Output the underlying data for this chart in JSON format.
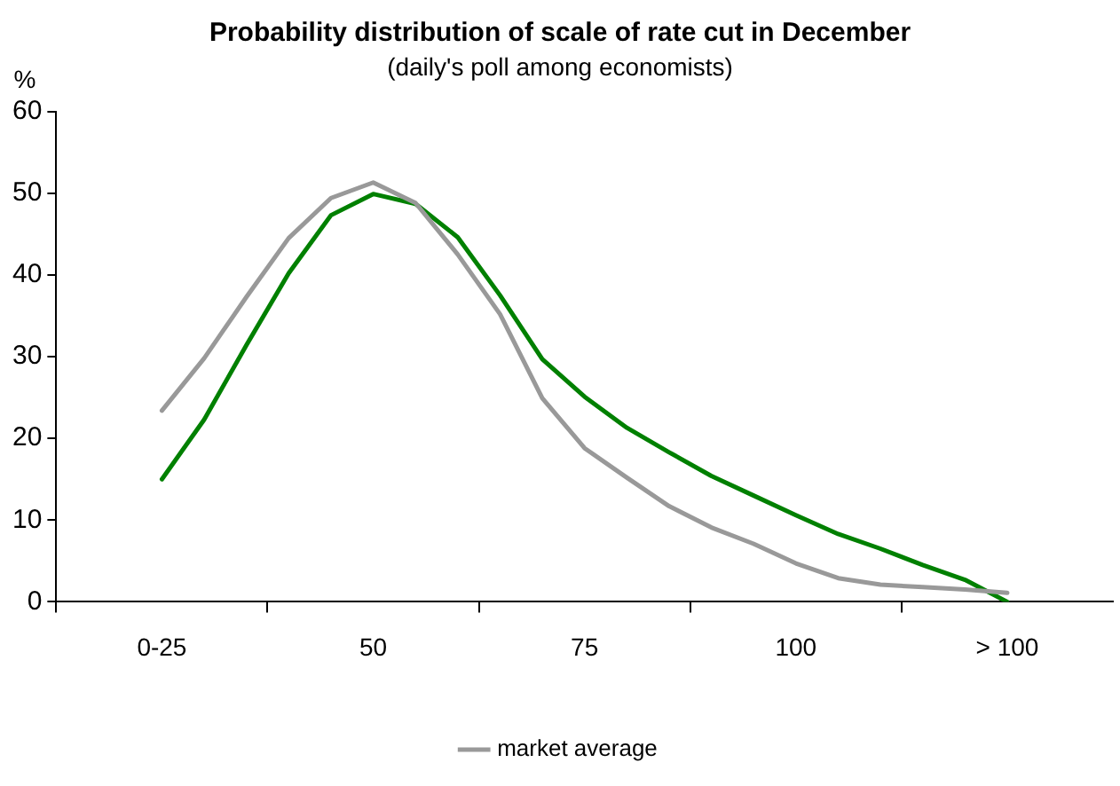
{
  "chart_data": {
    "type": "line",
    "title": "Probability distribution of scale of rate cut in December",
    "subtitle": "(daily's poll among economists)",
    "ylabel": "%",
    "categories": [
      null,
      null,
      "0-25",
      null,
      null,
      null,
      null,
      "50",
      null,
      null,
      null,
      null,
      "75",
      null,
      null,
      null,
      null,
      "100",
      null,
      null,
      null,
      null,
      "> 100",
      null,
      null
    ],
    "ylim": [
      0,
      60
    ],
    "yticks": [
      0,
      10,
      20,
      30,
      40,
      50,
      60
    ],
    "grid": false,
    "legend": "bottom",
    "marker": "none",
    "line_style": "solid",
    "series": [
      {
        "name": "market average",
        "color": "#999999",
        "values": [
          null,
          null,
          23.4,
          29.8,
          37.3,
          44.5,
          49.4,
          51.3,
          48.8,
          42.5,
          35.2,
          24.9,
          18.8,
          15.2,
          11.7,
          9.1,
          7.1,
          4.7,
          2.9,
          2.1,
          1.8,
          1.5,
          1.1,
          null,
          null
        ]
      },
      {
        "color": "#008000",
        "values": [
          null,
          null,
          15,
          22.3,
          31.4,
          40.2,
          47.3,
          49.9,
          48.7,
          44.6,
          37.5,
          29.7,
          25.1,
          21.3,
          18.3,
          15.4,
          13,
          10.6,
          8.3,
          6.5,
          4.5,
          2.7,
          0,
          null,
          null
        ]
      }
    ]
  }
}
